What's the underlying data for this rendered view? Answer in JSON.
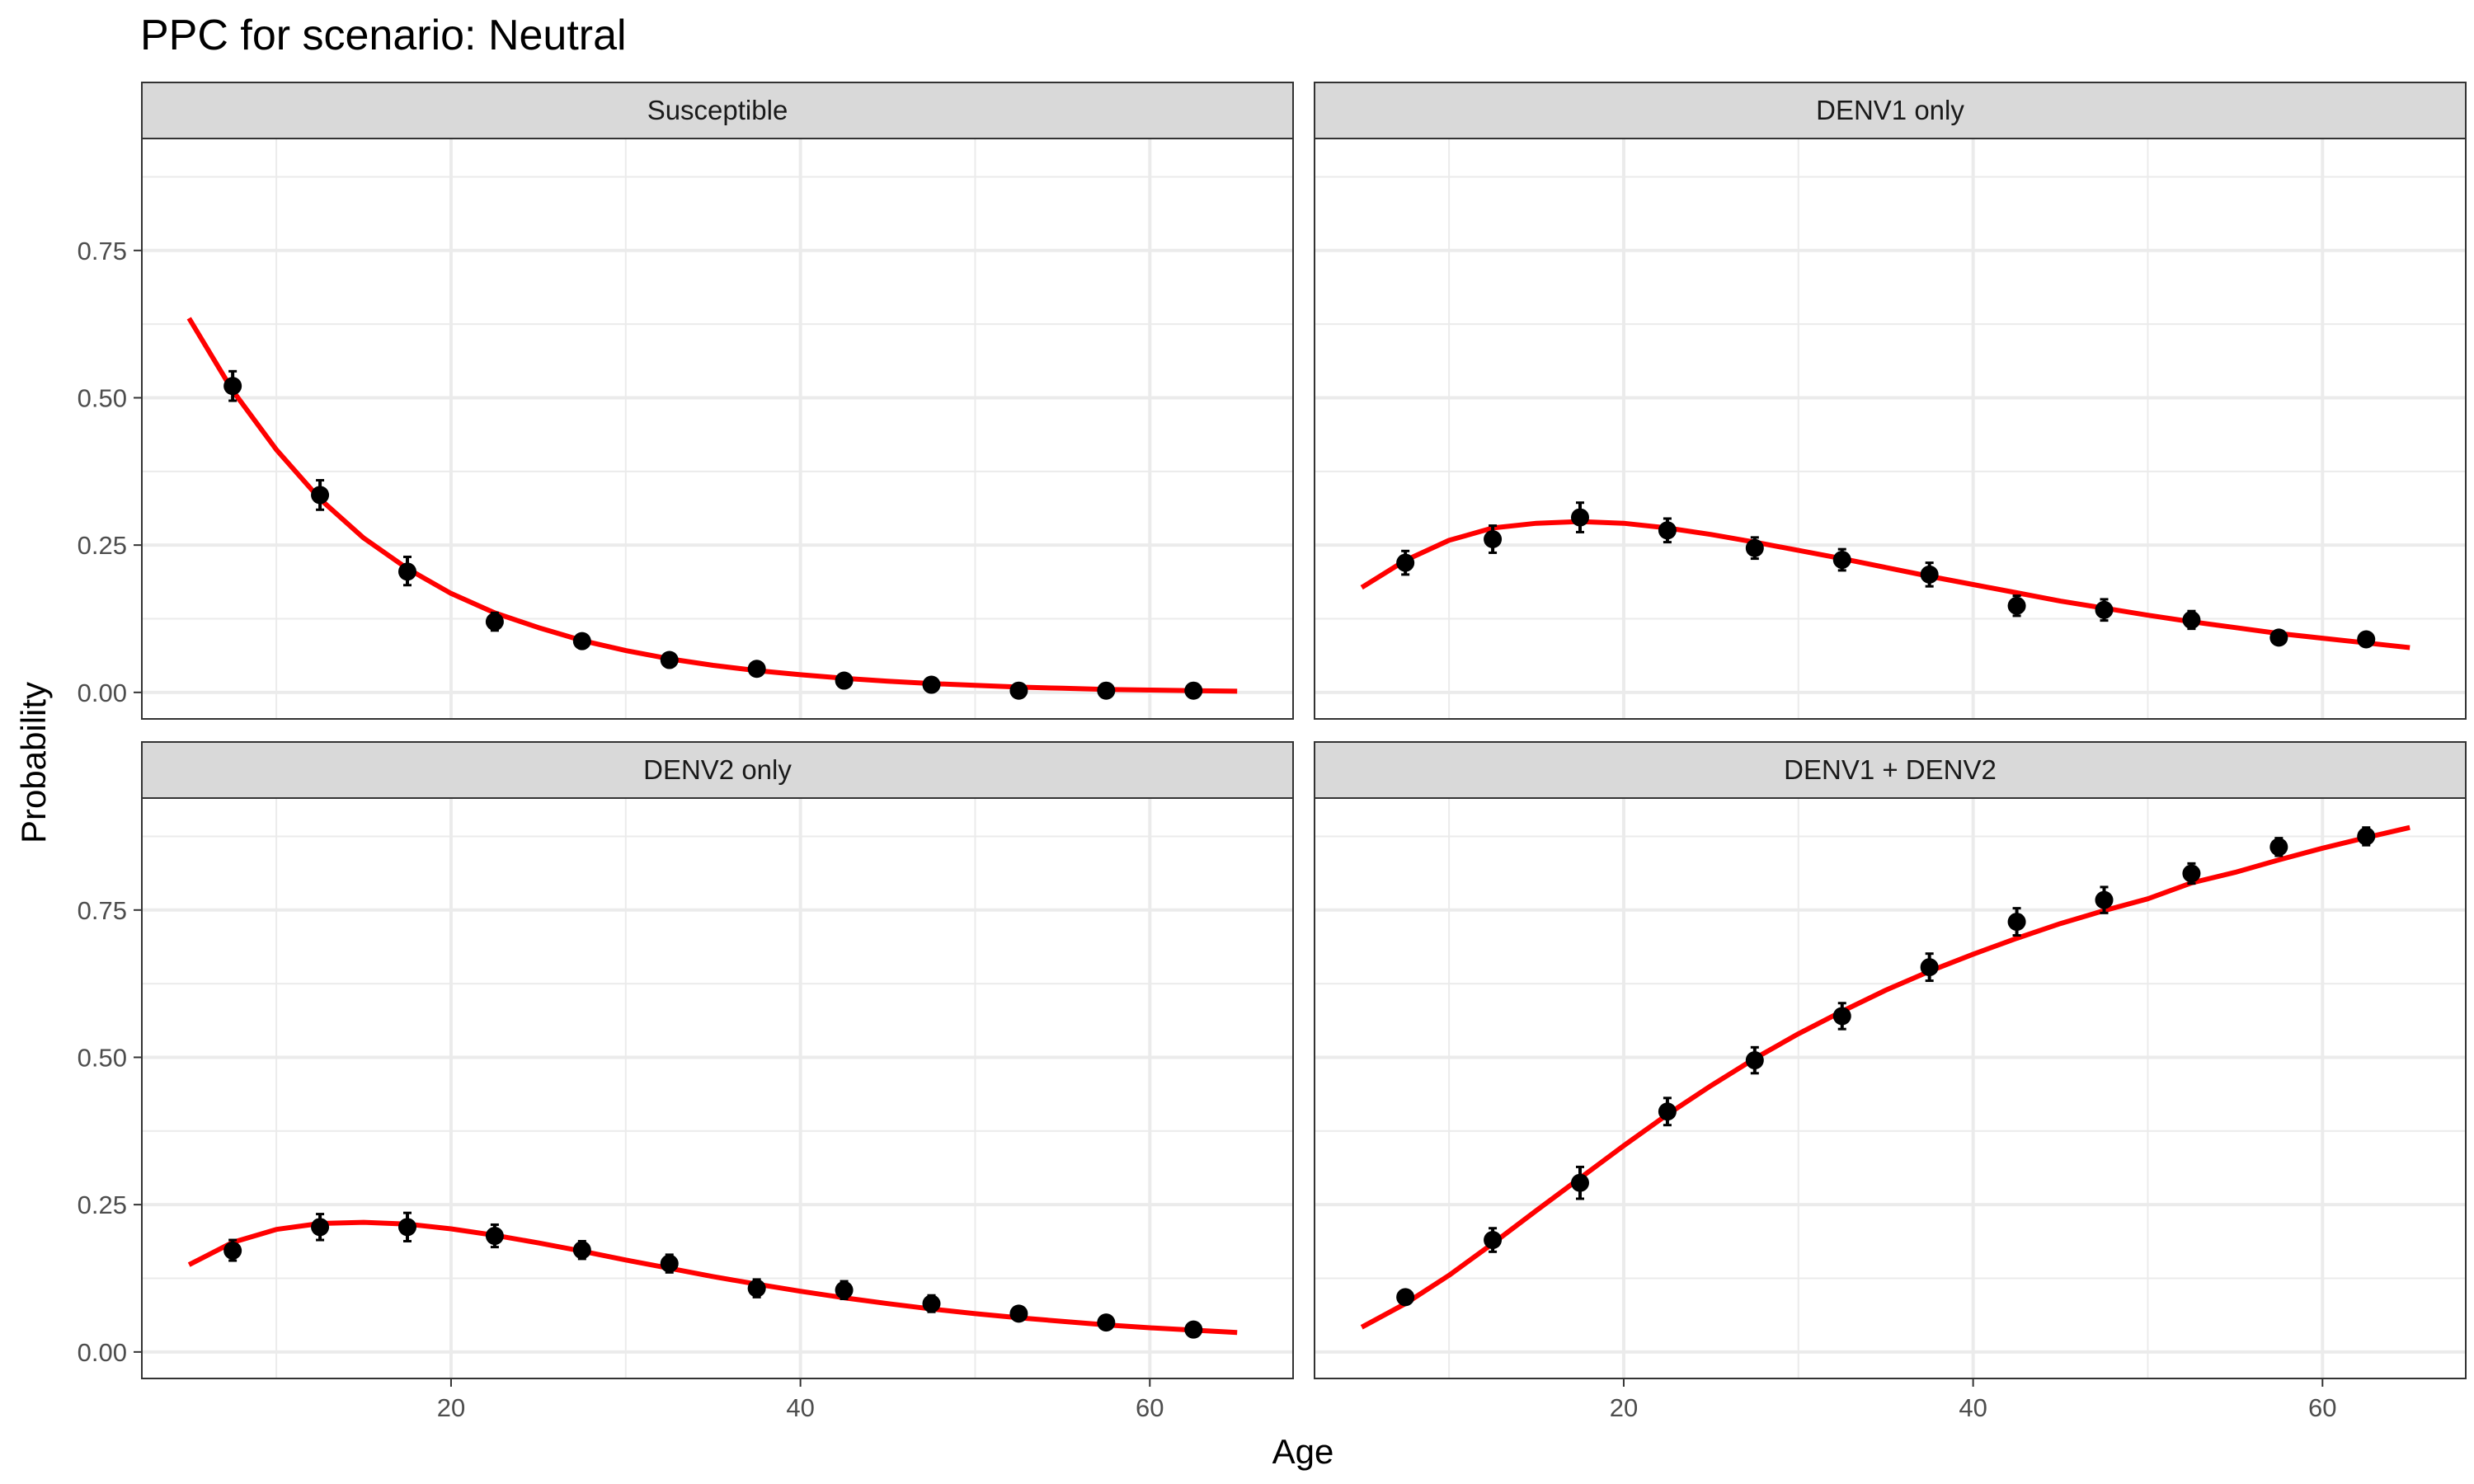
{
  "title": "PPC for scenario: Neutral",
  "xlabel": "Age",
  "ylabel": "Probability",
  "colors": {
    "curve": "#ff0000",
    "points": "#000000",
    "strip_fill": "#d9d9d9",
    "grid": "#ebebeb",
    "panel_border": "#333333"
  },
  "chart_data": {
    "type": "scatter",
    "title": "PPC for scenario: Neutral",
    "xlabel": "Age",
    "ylabel": "Probability",
    "xlim": [
      2.3,
      68.2
    ],
    "ylim": [
      -0.045,
      0.94
    ],
    "xticks": [
      20,
      40,
      60
    ],
    "xtick_labels": [
      "20",
      "40",
      "60"
    ],
    "yticks": [
      0,
      0.25,
      0.5,
      0.75
    ],
    "ytick_labels": [
      "0.00",
      "0.25",
      "0.50",
      "0.75"
    ],
    "grid": true,
    "legend": "none",
    "panels": [
      {
        "label": "Susceptible",
        "points": {
          "x": [
            7.5,
            12.5,
            17.5,
            22.5,
            27.5,
            32.5,
            37.5,
            42.5,
            47.5,
            52.5,
            57.5,
            62.5
          ],
          "y": [
            0.52,
            0.335,
            0.205,
            0.12,
            0.087,
            0.055,
            0.04,
            0.02,
            0.013,
            0.003,
            0.003,
            0.003
          ],
          "lo": [
            0.495,
            0.31,
            0.182,
            0.105,
            0.078,
            0.047,
            0.033,
            0.015,
            0.009,
            0.001,
            0.001,
            0.001
          ],
          "hi": [
            0.545,
            0.36,
            0.23,
            0.135,
            0.097,
            0.063,
            0.048,
            0.026,
            0.018,
            0.006,
            0.006,
            0.006
          ]
        },
        "curve": {
          "x": [
            5,
            7.5,
            10,
            12.5,
            15,
            17.5,
            20,
            22.5,
            25,
            27.5,
            30,
            32.5,
            35,
            37.5,
            40,
            42.5,
            45,
            47.5,
            50,
            52.5,
            55,
            57.5,
            60,
            62.5,
            65
          ],
          "y": [
            0.635,
            0.512,
            0.412,
            0.328,
            0.262,
            0.21,
            0.168,
            0.135,
            0.11,
            0.088,
            0.071,
            0.057,
            0.046,
            0.037,
            0.03,
            0.024,
            0.019,
            0.015,
            0.012,
            0.009,
            0.007,
            0.005,
            0.004,
            0.003,
            0.002
          ]
        }
      },
      {
        "label": "DENV1 only",
        "points": {
          "x": [
            7.5,
            12.5,
            17.5,
            22.5,
            27.5,
            32.5,
            37.5,
            42.5,
            47.5,
            52.5,
            57.5,
            62.5
          ],
          "y": [
            0.22,
            0.26,
            0.297,
            0.275,
            0.245,
            0.225,
            0.2,
            0.147,
            0.14,
            0.123,
            0.093,
            0.09
          ],
          "lo": [
            0.2,
            0.237,
            0.272,
            0.255,
            0.227,
            0.207,
            0.18,
            0.13,
            0.122,
            0.108,
            0.082,
            0.08
          ],
          "hi": [
            0.24,
            0.283,
            0.322,
            0.295,
            0.263,
            0.243,
            0.22,
            0.164,
            0.158,
            0.138,
            0.104,
            0.1
          ]
        },
        "curve": {
          "x": [
            5,
            7.5,
            10,
            12.5,
            15,
            17.5,
            20,
            22.5,
            25,
            27.5,
            30,
            32.5,
            35,
            37.5,
            40,
            42.5,
            45,
            47.5,
            50,
            52.5,
            55,
            57.5,
            60,
            62.5,
            65
          ],
          "y": [
            0.178,
            0.224,
            0.258,
            0.279,
            0.287,
            0.29,
            0.287,
            0.279,
            0.268,
            0.255,
            0.241,
            0.227,
            0.212,
            0.197,
            0.183,
            0.169,
            0.155,
            0.143,
            0.131,
            0.12,
            0.11,
            0.1,
            0.092,
            0.084,
            0.076
          ]
        }
      },
      {
        "label": "DENV2 only",
        "points": {
          "x": [
            7.5,
            12.5,
            17.5,
            22.5,
            27.5,
            32.5,
            37.5,
            42.5,
            47.5,
            52.5,
            57.5,
            62.5
          ],
          "y": [
            0.172,
            0.212,
            0.212,
            0.197,
            0.173,
            0.15,
            0.108,
            0.105,
            0.082,
            0.065,
            0.05,
            0.038
          ],
          "lo": [
            0.155,
            0.19,
            0.188,
            0.178,
            0.158,
            0.135,
            0.093,
            0.09,
            0.068,
            0.057,
            0.043,
            0.032
          ],
          "hi": [
            0.19,
            0.234,
            0.236,
            0.216,
            0.188,
            0.165,
            0.123,
            0.12,
            0.096,
            0.073,
            0.057,
            0.044
          ]
        },
        "curve": {
          "x": [
            5,
            7.5,
            10,
            12.5,
            15,
            17.5,
            20,
            22.5,
            25,
            27.5,
            30,
            32.5,
            35,
            37.5,
            40,
            42.5,
            45,
            47.5,
            50,
            52.5,
            55,
            57.5,
            60,
            62.5,
            65
          ],
          "y": [
            0.148,
            0.186,
            0.208,
            0.218,
            0.22,
            0.217,
            0.209,
            0.198,
            0.185,
            0.171,
            0.156,
            0.142,
            0.128,
            0.115,
            0.103,
            0.092,
            0.082,
            0.073,
            0.065,
            0.058,
            0.052,
            0.046,
            0.041,
            0.037,
            0.033
          ]
        }
      },
      {
        "label": "DENV1 + DENV2",
        "points": {
          "x": [
            7.5,
            12.5,
            17.5,
            22.5,
            27.5,
            32.5,
            37.5,
            42.5,
            47.5,
            52.5,
            57.5,
            62.5
          ],
          "y": [
            0.093,
            0.19,
            0.287,
            0.408,
            0.495,
            0.57,
            0.653,
            0.73,
            0.767,
            0.812,
            0.857,
            0.875
          ],
          "lo": [
            0.082,
            0.17,
            0.26,
            0.385,
            0.473,
            0.548,
            0.63,
            0.707,
            0.745,
            0.795,
            0.842,
            0.86
          ],
          "hi": [
            0.104,
            0.21,
            0.314,
            0.431,
            0.517,
            0.592,
            0.676,
            0.753,
            0.789,
            0.829,
            0.872,
            0.89
          ]
        },
        "curve": {
          "x": [
            5,
            7.5,
            10,
            12.5,
            15,
            17.5,
            20,
            22.5,
            25,
            27.5,
            30,
            32.5,
            35,
            37.5,
            40,
            42.5,
            45,
            47.5,
            50,
            52.5,
            55,
            57.5,
            60,
            62.5,
            65
          ],
          "y": [
            0.042,
            0.082,
            0.13,
            0.184,
            0.24,
            0.295,
            0.35,
            0.403,
            0.452,
            0.498,
            0.54,
            0.578,
            0.614,
            0.646,
            0.675,
            0.702,
            0.727,
            0.749,
            0.769,
            0.796,
            0.814,
            0.835,
            0.855,
            0.873,
            0.89
          ]
        }
      }
    ]
  }
}
